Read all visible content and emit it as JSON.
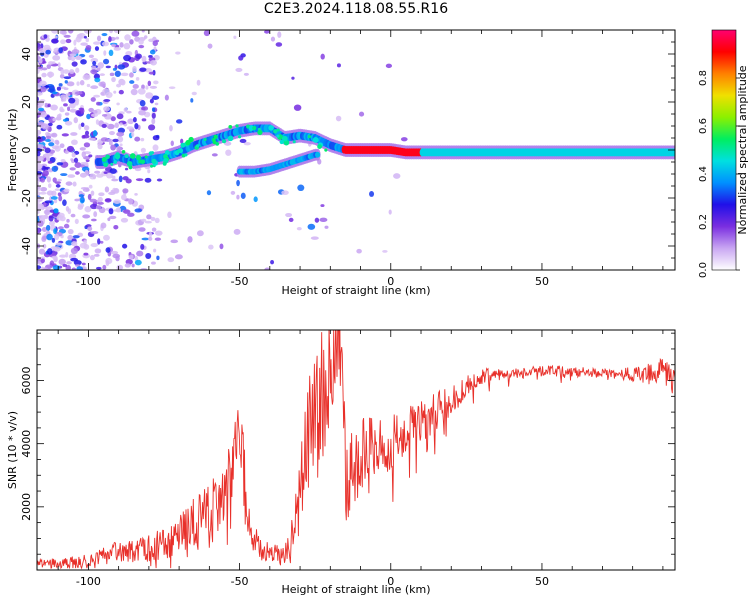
{
  "figure": {
    "title": "C2E3.2024.118.08.55.R16"
  },
  "chart_data": [
    {
      "type": "heatmap",
      "xlabel": "Height of straight line (km)",
      "ylabel": "Frequency (Hz)",
      "xlim": [
        -117,
        94
      ],
      "ylim": [
        -50,
        50
      ],
      "xticks": [
        -100,
        -50,
        0,
        50
      ],
      "yticks": [
        -40,
        -20,
        0,
        20,
        40
      ],
      "colorbar": {
        "label": "Normalized spectral amplitude",
        "range": [
          0,
          1
        ],
        "ticks": [
          0.0,
          0.2,
          0.4,
          0.6,
          0.8
        ],
        "colormap": [
          "#ffffff",
          "#c9a6f2",
          "#7a2ee0",
          "#2010e8",
          "#0090ff",
          "#00e0e0",
          "#00ee60",
          "#8cf000",
          "#f0e000",
          "#ff8000",
          "#ff0000",
          "#ff0070"
        ]
      },
      "ridge_frequency_hz": [
        {
          "x": -95,
          "y": -5
        },
        {
          "x": -90,
          "y": -3
        },
        {
          "x": -85,
          "y": -5
        },
        {
          "x": -80,
          "y": -4
        },
        {
          "x": -75,
          "y": -3
        },
        {
          "x": -70,
          "y": -1
        },
        {
          "x": -65,
          "y": 2
        },
        {
          "x": -60,
          "y": 4
        },
        {
          "x": -55,
          "y": 6
        },
        {
          "x": -50,
          "y": 8
        },
        {
          "x": -45,
          "y": 9
        },
        {
          "x": -40,
          "y": 9
        },
        {
          "x": -35,
          "y": 5
        },
        {
          "x": -30,
          "y": 6
        },
        {
          "x": -25,
          "y": 5
        },
        {
          "x": -20,
          "y": 2
        },
        {
          "x": -15,
          "y": 0
        },
        {
          "x": -10,
          "y": 0
        },
        {
          "x": -5,
          "y": 0
        },
        {
          "x": 0,
          "y": 0
        },
        {
          "x": 5,
          "y": -1
        },
        {
          "x": 10,
          "y": -1
        },
        {
          "x": 20,
          "y": -1
        },
        {
          "x": 40,
          "y": -1
        },
        {
          "x": 60,
          "y": -1
        },
        {
          "x": 80,
          "y": -1
        },
        {
          "x": 94,
          "y": -1
        }
      ],
      "secondary_ridge_hz": [
        {
          "x": -50,
          "y": -9
        },
        {
          "x": -45,
          "y": -9
        },
        {
          "x": -40,
          "y": -8
        },
        {
          "x": -35,
          "y": -6
        },
        {
          "x": -30,
          "y": -4
        },
        {
          "x": -25,
          "y": -2
        }
      ]
    },
    {
      "type": "line",
      "xlabel": "Height of straight line (km)",
      "ylabel": "SNR (10 * v/v)",
      "xlim": [
        -117,
        94
      ],
      "ylim": [
        0,
        7600
      ],
      "xticks": [
        -100,
        -50,
        0,
        50
      ],
      "yticks": [
        2000,
        4000,
        6000
      ],
      "color": "#e8302a",
      "series": [
        {
          "points": [
            {
              "x": -117,
              "y": 200
            },
            {
              "x": -110,
              "y": 220
            },
            {
              "x": -103,
              "y": 250
            },
            {
              "x": -97,
              "y": 400
            },
            {
              "x": -92,
              "y": 600
            },
            {
              "x": -85,
              "y": 550
            },
            {
              "x": -80,
              "y": 700
            },
            {
              "x": -75,
              "y": 800
            },
            {
              "x": -70,
              "y": 1100
            },
            {
              "x": -65,
              "y": 1500
            },
            {
              "x": -60,
              "y": 1700
            },
            {
              "x": -55,
              "y": 2300
            },
            {
              "x": -52,
              "y": 3500
            },
            {
              "x": -50,
              "y": 5000
            },
            {
              "x": -48,
              "y": 2200
            },
            {
              "x": -45,
              "y": 900
            },
            {
              "x": -40,
              "y": 500
            },
            {
              "x": -35,
              "y": 450
            },
            {
              "x": -32,
              "y": 1000
            },
            {
              "x": -28,
              "y": 4000
            },
            {
              "x": -25,
              "y": 5000
            },
            {
              "x": -20,
              "y": 6200
            },
            {
              "x": -17,
              "y": 7500
            },
            {
              "x": -15,
              "y": 3000
            },
            {
              "x": -10,
              "y": 3500
            },
            {
              "x": -5,
              "y": 3800
            },
            {
              "x": 0,
              "y": 4000
            },
            {
              "x": 5,
              "y": 4400
            },
            {
              "x": 10,
              "y": 4700
            },
            {
              "x": 15,
              "y": 5000
            },
            {
              "x": 20,
              "y": 5400
            },
            {
              "x": 25,
              "y": 5800
            },
            {
              "x": 30,
              "y": 6100
            },
            {
              "x": 35,
              "y": 6200
            },
            {
              "x": 45,
              "y": 6250
            },
            {
              "x": 55,
              "y": 6300
            },
            {
              "x": 65,
              "y": 6250
            },
            {
              "x": 75,
              "y": 6200
            },
            {
              "x": 85,
              "y": 6200
            },
            {
              "x": 90,
              "y": 6300
            },
            {
              "x": 94,
              "y": 6100
            }
          ],
          "noise_amplitude": [
            {
              "x": -117,
              "y": 120
            },
            {
              "x": -95,
              "y": 250
            },
            {
              "x": -70,
              "y": 600
            },
            {
              "x": -55,
              "y": 1200
            },
            {
              "x": -50,
              "y": 1500
            },
            {
              "x": -45,
              "y": 500
            },
            {
              "x": -35,
              "y": 300
            },
            {
              "x": -25,
              "y": 2500
            },
            {
              "x": -15,
              "y": 1500
            },
            {
              "x": 0,
              "y": 900
            },
            {
              "x": 20,
              "y": 500
            },
            {
              "x": 35,
              "y": 200
            },
            {
              "x": 75,
              "y": 150
            },
            {
              "x": 94,
              "y": 500
            }
          ]
        }
      ]
    }
  ]
}
